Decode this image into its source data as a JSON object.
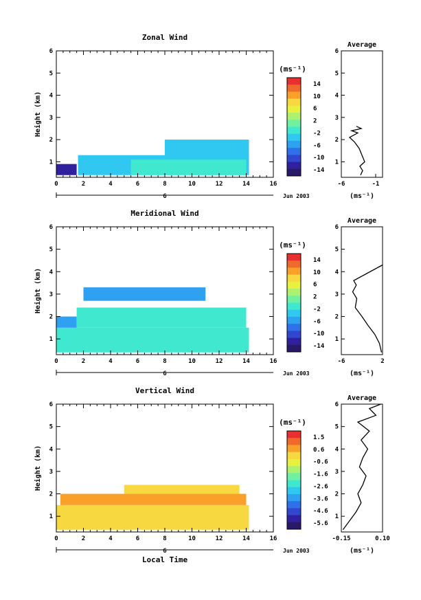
{
  "time_axis": {
    "ticks": [
      "0",
      "2",
      "4",
      "6",
      "8",
      "10",
      "12",
      "14",
      "16"
    ],
    "day_label": "6",
    "date_label": "Jun 2003",
    "xlabel": "Local Time"
  },
  "height_axis": {
    "label": "Height (km)",
    "ticks": [
      "1",
      "2",
      "3",
      "4",
      "5",
      "6"
    ]
  },
  "units_label": "(ms⁻¹)",
  "avg_title": "Average",
  "colorbar_colors": [
    "#e83030",
    "#f06a2a",
    "#f8a02a",
    "#f8d840",
    "#e8f040",
    "#b0f070",
    "#70f0a0",
    "#40e8d0",
    "#30c8f0",
    "#30a0f0",
    "#3070e8",
    "#3048d0",
    "#3020a0",
    "#2a1868"
  ],
  "chart_data": [
    {
      "type": "heatmap",
      "title": "Zonal Wind",
      "ylabel": "Height (km)",
      "xlim": [
        0,
        16
      ],
      "ylim": [
        0.3,
        6
      ],
      "colorbar_ticks": [
        "14",
        "10",
        "6",
        "2",
        "-2",
        "-6",
        "-10",
        "-14"
      ],
      "colorbar_range": [
        -16,
        16
      ],
      "cells": [
        {
          "x": [
            0,
            1.5
          ],
          "y": [
            0.4,
            0.9
          ],
          "v": -12
        },
        {
          "x": [
            1.6,
            14.2
          ],
          "y": [
            0.4,
            1.3
          ],
          "v": -4
        },
        {
          "x": [
            5.5,
            14
          ],
          "y": [
            0.4,
            1.1
          ],
          "v": 0
        },
        {
          "x": [
            8,
            14.2
          ],
          "y": [
            1.2,
            2.0
          ],
          "v": -4
        }
      ],
      "avg": {
        "xlim": [
          -6,
          0
        ],
        "xticks": [
          "-6",
          "-1"
        ],
        "xlabel": "(ms⁻¹)",
        "profile": [
          [
            -3.2,
            0.4
          ],
          [
            -2.9,
            0.6
          ],
          [
            -3.3,
            0.8
          ],
          [
            -2.6,
            1.0
          ],
          [
            -3.0,
            1.3
          ],
          [
            -3.4,
            1.6
          ],
          [
            -4.1,
            1.9
          ],
          [
            -4.8,
            2.1
          ],
          [
            -3.6,
            2.3
          ],
          [
            -4.5,
            2.4
          ],
          [
            -3.1,
            2.5
          ],
          [
            -3.8,
            2.6
          ]
        ]
      }
    },
    {
      "type": "heatmap",
      "title": "Meridional Wind",
      "ylabel": "Height (km)",
      "xlim": [
        0,
        16
      ],
      "ylim": [
        0.3,
        6
      ],
      "colorbar_ticks": [
        "14",
        "10",
        "6",
        "2",
        "-2",
        "-6",
        "-10",
        "-14"
      ],
      "colorbar_range": [
        -16,
        16
      ],
      "cells": [
        {
          "x": [
            0,
            14.2
          ],
          "y": [
            0.4,
            1.5
          ],
          "v": 0
        },
        {
          "x": [
            0,
            1.5
          ],
          "y": [
            1.5,
            2.0
          ],
          "v": -6
        },
        {
          "x": [
            1.5,
            14
          ],
          "y": [
            1.5,
            2.4
          ],
          "v": -1
        },
        {
          "x": [
            2,
            11
          ],
          "y": [
            2.7,
            3.3
          ],
          "v": -6
        }
      ],
      "avg": {
        "xlim": [
          -6,
          2
        ],
        "xticks": [
          "-6",
          "2"
        ],
        "xlabel": "(ms⁻¹)",
        "profile": [
          [
            1.8,
            0.4
          ],
          [
            1.4,
            0.8
          ],
          [
            0.5,
            1.2
          ],
          [
            -0.8,
            1.6
          ],
          [
            -2.0,
            2.0
          ],
          [
            -3.3,
            2.4
          ],
          [
            -3.0,
            2.8
          ],
          [
            -3.8,
            3.1
          ],
          [
            -3.1,
            3.4
          ],
          [
            -3.6,
            3.6
          ],
          [
            0.4,
            4.1
          ],
          [
            2.0,
            4.3
          ]
        ]
      }
    },
    {
      "type": "heatmap",
      "title": "Vertical Wind",
      "ylabel": "Height (km)",
      "xlabel": "Local Time",
      "xlim": [
        0,
        16
      ],
      "ylim": [
        0.3,
        6
      ],
      "colorbar_ticks": [
        "1.5",
        "0.6",
        "-0.6",
        "-1.6",
        "-2.6",
        "-3.6",
        "-4.6",
        "-5.6"
      ],
      "colorbar_range": [
        -6.0,
        2.0
      ],
      "cells": [
        {
          "x": [
            0,
            14.2
          ],
          "y": [
            0.4,
            1.5
          ],
          "v": 0.1
        },
        {
          "x": [
            0.3,
            14
          ],
          "y": [
            1.5,
            2.0
          ],
          "v": 0.4
        },
        {
          "x": [
            5,
            13.5
          ],
          "y": [
            2.0,
            2.4
          ],
          "v": 0.1
        }
      ],
      "avg": {
        "xlim": [
          -0.15,
          0.1
        ],
        "xticks": [
          "-0.15",
          "0.10"
        ],
        "xlabel": "(ms⁻¹)",
        "profile": [
          [
            -0.14,
            0.4
          ],
          [
            -0.1,
            0.8
          ],
          [
            -0.06,
            1.2
          ],
          [
            -0.03,
            1.6
          ],
          [
            -0.05,
            2.0
          ],
          [
            -0.02,
            2.4
          ],
          [
            0.0,
            2.8
          ],
          [
            -0.04,
            3.2
          ],
          [
            -0.02,
            3.6
          ],
          [
            0.01,
            4.0
          ],
          [
            -0.03,
            4.4
          ],
          [
            0.02,
            4.8
          ],
          [
            -0.05,
            5.2
          ],
          [
            0.06,
            5.5
          ],
          [
            0.02,
            5.8
          ],
          [
            0.09,
            6.0
          ]
        ]
      }
    }
  ]
}
